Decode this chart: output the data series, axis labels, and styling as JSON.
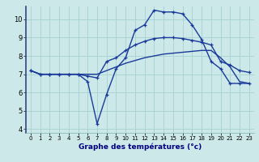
{
  "title": "Graphe des températures (°c)",
  "bg_color": "#cce8e8",
  "grid_color": "#aad4d4",
  "line_color": "#1a3a9a",
  "xlim": [
    -0.5,
    23.5
  ],
  "ylim": [
    3.8,
    10.7
  ],
  "xticks": [
    0,
    1,
    2,
    3,
    4,
    5,
    6,
    7,
    8,
    9,
    10,
    11,
    12,
    13,
    14,
    15,
    16,
    17,
    18,
    19,
    20,
    21,
    22,
    23
  ],
  "yticks": [
    4,
    5,
    6,
    7,
    8,
    9,
    10
  ],
  "series1_x": [
    0,
    1,
    2,
    3,
    4,
    5,
    6,
    7,
    8,
    9,
    10,
    11,
    12,
    13,
    14,
    15,
    16,
    17,
    18,
    19,
    20,
    21,
    22,
    23
  ],
  "series1_y": [
    7.2,
    7.0,
    7.0,
    7.0,
    7.0,
    7.0,
    6.6,
    4.3,
    5.9,
    7.3,
    7.9,
    9.4,
    9.7,
    10.5,
    10.4,
    10.4,
    10.3,
    9.7,
    8.9,
    7.7,
    7.3,
    6.5,
    6.5,
    6.5
  ],
  "series2_x": [
    0,
    1,
    2,
    3,
    4,
    5,
    6,
    7,
    8,
    9,
    10,
    11,
    12,
    13,
    14,
    15,
    16,
    17,
    18,
    19,
    20,
    21,
    22,
    23
  ],
  "series2_y": [
    7.2,
    7.0,
    7.0,
    7.0,
    7.0,
    7.0,
    6.9,
    6.8,
    7.7,
    7.9,
    8.3,
    8.6,
    8.8,
    8.95,
    9.0,
    9.0,
    8.95,
    8.85,
    8.75,
    8.6,
    7.7,
    7.5,
    7.2,
    7.1
  ],
  "series3_x": [
    0,
    1,
    2,
    3,
    4,
    5,
    6,
    7,
    8,
    9,
    10,
    11,
    12,
    13,
    14,
    15,
    16,
    17,
    18,
    19,
    20,
    21,
    22,
    23
  ],
  "series3_y": [
    7.2,
    7.0,
    7.0,
    7.0,
    7.0,
    7.0,
    7.0,
    7.0,
    7.2,
    7.4,
    7.6,
    7.75,
    7.9,
    8.0,
    8.1,
    8.15,
    8.2,
    8.25,
    8.3,
    8.3,
    7.9,
    7.4,
    6.6,
    6.5
  ]
}
